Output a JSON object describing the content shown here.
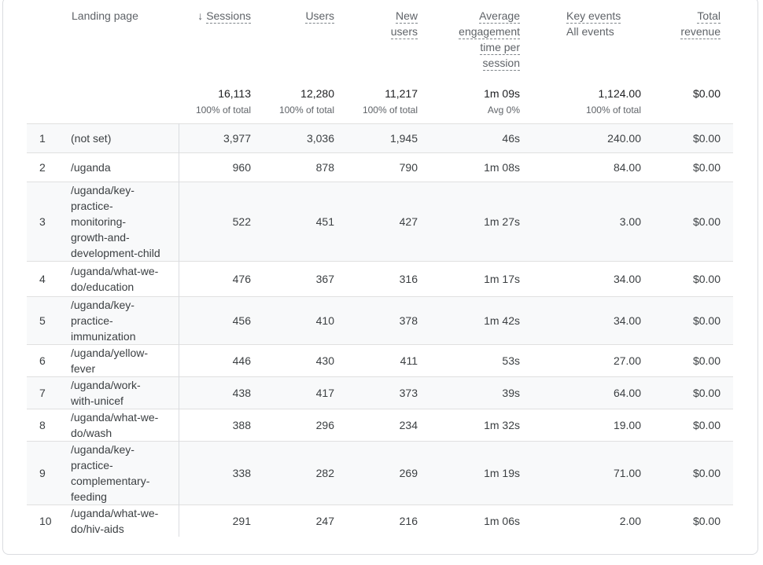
{
  "header": {
    "landing_page": "Landing page",
    "sessions": "Sessions",
    "users": "Users",
    "new_users_1": "New",
    "new_users_2": "users",
    "avg_eng_1": "Average",
    "avg_eng_2": "engagement",
    "avg_eng_3": "time per",
    "avg_eng_4": "session",
    "key_events": "Key events",
    "key_events_sub": "All events",
    "total_rev_1": "Total",
    "total_rev_2": "revenue",
    "sort_icon": "↓"
  },
  "totals": {
    "sessions": "16,113",
    "sessions_sub": "100% of total",
    "users": "12,280",
    "users_sub": "100% of total",
    "new_users": "11,217",
    "new_users_sub": "100% of total",
    "avg_eng": "1m 09s",
    "avg_eng_sub": "Avg 0%",
    "key_events": "1,124.00",
    "key_events_sub": "100% of total",
    "revenue": "$0.00"
  },
  "rows": [
    {
      "idx": "1",
      "l1": "(not set)",
      "l2": "",
      "l3": "",
      "l4": "",
      "l5": "",
      "sessions": "3,977",
      "users": "3,036",
      "new_users": "1,945",
      "avg": "46s",
      "key": "240.00",
      "rev": "$0.00"
    },
    {
      "idx": "2",
      "l1": "/uganda",
      "l2": "",
      "l3": "",
      "l4": "",
      "l5": "",
      "sessions": "960",
      "users": "878",
      "new_users": "790",
      "avg": "1m 08s",
      "key": "84.00",
      "rev": "$0.00"
    },
    {
      "idx": "3",
      "l1": "/uganda/key-",
      "l2": "practice-",
      "l3": "monitoring-",
      "l4": "growth-and-",
      "l5": "development-child",
      "sessions": "522",
      "users": "451",
      "new_users": "427",
      "avg": "1m 27s",
      "key": "3.00",
      "rev": "$0.00"
    },
    {
      "idx": "4",
      "l1": "/uganda/what-we-",
      "l2": "do/education",
      "l3": "",
      "l4": "",
      "l5": "",
      "sessions": "476",
      "users": "367",
      "new_users": "316",
      "avg": "1m 17s",
      "key": "34.00",
      "rev": "$0.00"
    },
    {
      "idx": "5",
      "l1": "/uganda/key-",
      "l2": "practice-",
      "l3": "immunization",
      "l4": "",
      "l5": "",
      "sessions": "456",
      "users": "410",
      "new_users": "378",
      "avg": "1m 42s",
      "key": "34.00",
      "rev": "$0.00"
    },
    {
      "idx": "6",
      "l1": "/uganda/yellow-",
      "l2": "fever",
      "l3": "",
      "l4": "",
      "l5": "",
      "sessions": "446",
      "users": "430",
      "new_users": "411",
      "avg": "53s",
      "key": "27.00",
      "rev": "$0.00"
    },
    {
      "idx": "7",
      "l1": "/uganda/work-",
      "l2": "with-unicef",
      "l3": "",
      "l4": "",
      "l5": "",
      "sessions": "438",
      "users": "417",
      "new_users": "373",
      "avg": "39s",
      "key": "64.00",
      "rev": "$0.00"
    },
    {
      "idx": "8",
      "l1": "/uganda/what-we-",
      "l2": "do/wash",
      "l3": "",
      "l4": "",
      "l5": "",
      "sessions": "388",
      "users": "296",
      "new_users": "234",
      "avg": "1m 32s",
      "key": "19.00",
      "rev": "$0.00"
    },
    {
      "idx": "9",
      "l1": "/uganda/key-",
      "l2": "practice-",
      "l3": "complementary-",
      "l4": "feeding",
      "l5": "",
      "sessions": "338",
      "users": "282",
      "new_users": "269",
      "avg": "1m 19s",
      "key": "71.00",
      "rev": "$0.00"
    },
    {
      "idx": "10",
      "l1": "/uganda/what-we-",
      "l2": "do/hiv-aids",
      "l3": "",
      "l4": "",
      "l5": "",
      "sessions": "291",
      "users": "247",
      "new_users": "216",
      "avg": "1m 06s",
      "key": "2.00",
      "rev": "$0.00"
    }
  ]
}
